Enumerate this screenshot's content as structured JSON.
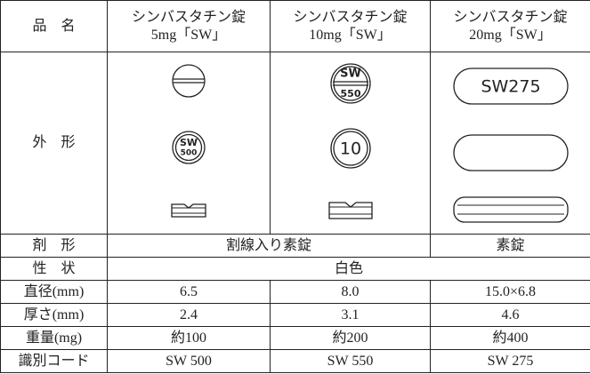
{
  "table": {
    "header": {
      "label": "品　名",
      "products": [
        {
          "name": "シンバスタチン錠",
          "strength": "5mg「SW」"
        },
        {
          "name": "シンバスタチン錠",
          "strength": "10mg「SW」"
        },
        {
          "name": "シンバスタチン錠",
          "strength": "20mg「SW」"
        }
      ]
    },
    "appearance": {
      "label": "外　形",
      "imprints": [
        [
          "SW",
          "500"
        ],
        [
          "SW",
          "550",
          "10"
        ],
        [
          "SW275"
        ]
      ]
    },
    "rows": [
      {
        "label": "剤　形",
        "cells": [
          "割線入り素錠",
          "素錠"
        ]
      },
      {
        "label": "性　状",
        "cells": [
          "白色"
        ]
      },
      {
        "label": "直径(mm)",
        "cells": [
          "6.5",
          "8.0",
          "15.0×6.8"
        ]
      },
      {
        "label": "厚さ(mm)",
        "cells": [
          "2.4",
          "3.1",
          "4.6"
        ]
      },
      {
        "label": "重量(mg)",
        "cells": [
          "約100",
          "約200",
          "約400"
        ]
      },
      {
        "label": "識別コード",
        "cells": [
          "SW 500",
          "SW 550",
          "SW 275"
        ]
      }
    ]
  }
}
